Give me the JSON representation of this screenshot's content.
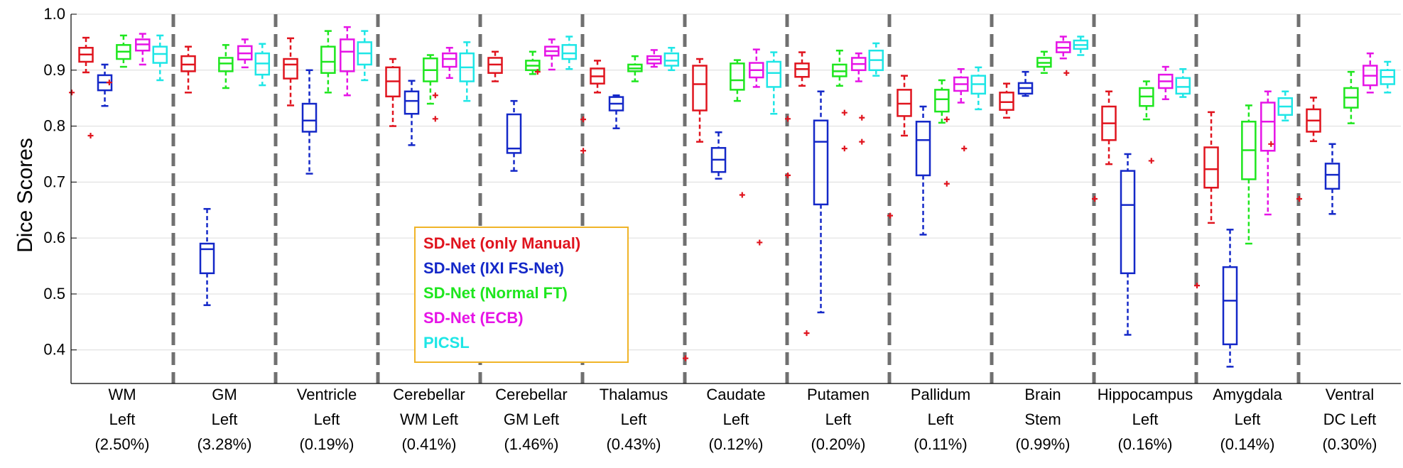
{
  "chart_data": {
    "type": "box",
    "title": "",
    "xlabel": "",
    "ylabel": "Dice Scores",
    "ylim": [
      0.34,
      1.0
    ],
    "yticks": [
      "0.4",
      "0.5",
      "0.6",
      "0.7",
      "0.8",
      "0.9",
      "1.0"
    ],
    "ytick_values": [
      0.4,
      0.5,
      0.6,
      0.7,
      0.8,
      0.9,
      1.0
    ],
    "grid": true,
    "legend_position": "center-left inside plot",
    "categories": [
      {
        "lines": [
          "WM",
          "Left",
          "(2.50%)"
        ]
      },
      {
        "lines": [
          "GM",
          "Left",
          "(3.28%)"
        ]
      },
      {
        "lines": [
          "Ventricle",
          "Left",
          "(0.19%)"
        ]
      },
      {
        "lines": [
          "Cerebellar",
          "WM Left",
          "(0.41%)"
        ]
      },
      {
        "lines": [
          "Cerebellar",
          "GM Left",
          "(1.46%)"
        ]
      },
      {
        "lines": [
          "Thalamus",
          "Left",
          "(0.43%)"
        ]
      },
      {
        "lines": [
          "Caudate",
          "Left",
          "(0.12%)"
        ]
      },
      {
        "lines": [
          "Putamen",
          "Left",
          "(0.20%)"
        ]
      },
      {
        "lines": [
          "Pallidum",
          "Left",
          "(0.11%)"
        ]
      },
      {
        "lines": [
          "Brain",
          "Stem",
          "(0.99%)"
        ]
      },
      {
        "lines": [
          "Hippocampus",
          "Left",
          "(0.16%)"
        ]
      },
      {
        "lines": [
          "Amygdala",
          "Left",
          "(0.14%)"
        ]
      },
      {
        "lines": [
          "Ventral",
          "DC Left",
          "(0.30%)"
        ]
      }
    ],
    "series": [
      {
        "name": "SD-Net (only Manual)",
        "color": "#e0141e",
        "boxes": [
          {
            "w1": 0.896,
            "q1": 0.915,
            "med": 0.928,
            "q3": 0.94,
            "w2": 0.958,
            "out": [
              0.86
            ]
          },
          {
            "w1": 0.86,
            "q1": 0.898,
            "med": 0.91,
            "q3": 0.925,
            "w2": 0.942,
            "out": []
          },
          {
            "w1": 0.837,
            "q1": 0.885,
            "med": 0.91,
            "q3": 0.92,
            "w2": 0.957,
            "out": []
          },
          {
            "w1": 0.8,
            "q1": 0.853,
            "med": 0.88,
            "q3": 0.905,
            "w2": 0.92,
            "out": []
          },
          {
            "w1": 0.88,
            "q1": 0.895,
            "med": 0.91,
            "q3": 0.922,
            "w2": 0.933,
            "out": []
          },
          {
            "w1": 0.86,
            "q1": 0.876,
            "med": 0.889,
            "q3": 0.903,
            "w2": 0.917,
            "out": [
              0.812,
              0.756
            ]
          },
          {
            "w1": 0.772,
            "q1": 0.828,
            "med": 0.875,
            "q3": 0.908,
            "w2": 0.92,
            "out": [
              0.385
            ]
          },
          {
            "w1": 0.872,
            "q1": 0.888,
            "med": 0.902,
            "q3": 0.912,
            "w2": 0.932,
            "out": [
              0.813,
              0.712
            ]
          },
          {
            "w1": 0.783,
            "q1": 0.818,
            "med": 0.84,
            "q3": 0.865,
            "w2": 0.89,
            "out": [
              0.64
            ]
          },
          {
            "w1": 0.815,
            "q1": 0.829,
            "med": 0.843,
            "q3": 0.86,
            "w2": 0.876,
            "out": []
          },
          {
            "w1": 0.732,
            "q1": 0.775,
            "med": 0.805,
            "q3": 0.835,
            "w2": 0.862,
            "out": [
              0.67
            ]
          },
          {
            "w1": 0.627,
            "q1": 0.69,
            "med": 0.723,
            "q3": 0.762,
            "w2": 0.825,
            "out": [
              0.515
            ]
          },
          {
            "w1": 0.773,
            "q1": 0.79,
            "med": 0.81,
            "q3": 0.83,
            "w2": 0.851,
            "out": [
              0.67
            ]
          }
        ]
      },
      {
        "name": "SD-Net (IXI FS-Net)",
        "color": "#1428c8",
        "boxes": [
          {
            "w1": 0.836,
            "q1": 0.864,
            "med": 0.878,
            "q3": 0.891,
            "w2": 0.91,
            "out": [
              0.783
            ]
          },
          {
            "w1": 0.48,
            "q1": 0.537,
            "med": 0.58,
            "q3": 0.59,
            "w2": 0.652,
            "out": []
          },
          {
            "w1": 0.715,
            "q1": 0.79,
            "med": 0.81,
            "q3": 0.84,
            "w2": 0.9,
            "out": []
          },
          {
            "w1": 0.766,
            "q1": 0.822,
            "med": 0.845,
            "q3": 0.862,
            "w2": 0.881,
            "out": []
          },
          {
            "w1": 0.72,
            "q1": 0.752,
            "med": 0.76,
            "q3": 0.821,
            "w2": 0.845,
            "out": []
          },
          {
            "w1": 0.796,
            "q1": 0.828,
            "med": 0.84,
            "q3": 0.852,
            "w2": 0.855,
            "out": []
          },
          {
            "w1": 0.706,
            "q1": 0.718,
            "med": 0.74,
            "q3": 0.761,
            "w2": 0.789,
            "out": []
          },
          {
            "w1": 0.467,
            "q1": 0.66,
            "med": 0.772,
            "q3": 0.81,
            "w2": 0.862,
            "out": [
              0.43
            ]
          },
          {
            "w1": 0.606,
            "q1": 0.712,
            "med": 0.775,
            "q3": 0.808,
            "w2": 0.835,
            "out": []
          },
          {
            "w1": 0.854,
            "q1": 0.858,
            "med": 0.868,
            "q3": 0.877,
            "w2": 0.897,
            "out": []
          },
          {
            "w1": 0.427,
            "q1": 0.537,
            "med": 0.659,
            "q3": 0.72,
            "w2": 0.75,
            "out": []
          },
          {
            "w1": 0.37,
            "q1": 0.41,
            "med": 0.488,
            "q3": 0.548,
            "w2": 0.615,
            "out": []
          },
          {
            "w1": 0.643,
            "q1": 0.688,
            "med": 0.713,
            "q3": 0.733,
            "w2": 0.768,
            "out": []
          }
        ]
      },
      {
        "name": "SD-Net (Normal FT)",
        "color": "#1ee61e",
        "boxes": [
          {
            "w1": 0.906,
            "q1": 0.92,
            "med": 0.933,
            "q3": 0.945,
            "w2": 0.962,
            "out": [
              0.878
            ]
          },
          {
            "w1": 0.868,
            "q1": 0.898,
            "med": 0.912,
            "q3": 0.922,
            "w2": 0.945,
            "out": []
          },
          {
            "w1": 0.86,
            "q1": 0.895,
            "med": 0.915,
            "q3": 0.942,
            "w2": 0.97,
            "out": []
          },
          {
            "w1": 0.84,
            "q1": 0.88,
            "med": 0.9,
            "q3": 0.921,
            "w2": 0.927,
            "out": []
          },
          {
            "w1": 0.893,
            "q1": 0.9,
            "med": 0.908,
            "q3": 0.917,
            "w2": 0.933,
            "out": []
          },
          {
            "w1": 0.88,
            "q1": 0.898,
            "med": 0.903,
            "q3": 0.91,
            "w2": 0.925,
            "out": []
          },
          {
            "w1": 0.845,
            "q1": 0.865,
            "med": 0.882,
            "q3": 0.912,
            "w2": 0.918,
            "out": []
          },
          {
            "w1": 0.872,
            "q1": 0.889,
            "med": 0.898,
            "q3": 0.91,
            "w2": 0.935,
            "out": []
          },
          {
            "w1": 0.806,
            "q1": 0.826,
            "med": 0.848,
            "q3": 0.865,
            "w2": 0.882,
            "out": []
          },
          {
            "w1": 0.895,
            "q1": 0.906,
            "med": 0.913,
            "q3": 0.922,
            "w2": 0.933,
            "out": []
          },
          {
            "w1": 0.812,
            "q1": 0.836,
            "med": 0.853,
            "q3": 0.868,
            "w2": 0.88,
            "out": []
          },
          {
            "w1": 0.59,
            "q1": 0.705,
            "med": 0.757,
            "q3": 0.808,
            "w2": 0.837,
            "out": []
          },
          {
            "w1": 0.805,
            "q1": 0.833,
            "med": 0.851,
            "q3": 0.868,
            "w2": 0.897,
            "out": []
          }
        ]
      },
      {
        "name": "SD-Net (ECB)",
        "color": "#e614e6",
        "boxes": [
          {
            "w1": 0.91,
            "q1": 0.935,
            "med": 0.946,
            "q3": 0.955,
            "w2": 0.965,
            "out": []
          },
          {
            "w1": 0.905,
            "q1": 0.919,
            "med": 0.93,
            "q3": 0.943,
            "w2": 0.955,
            "out": []
          },
          {
            "w1": 0.855,
            "q1": 0.898,
            "med": 0.933,
            "q3": 0.955,
            "w2": 0.977,
            "out": []
          },
          {
            "w1": 0.886,
            "q1": 0.906,
            "med": 0.92,
            "q3": 0.93,
            "w2": 0.94,
            "out": [
              0.855,
              0.813
            ]
          },
          {
            "w1": 0.901,
            "q1": 0.926,
            "med": 0.934,
            "q3": 0.942,
            "w2": 0.955,
            "out": [
              0.897
            ]
          },
          {
            "w1": 0.906,
            "q1": 0.912,
            "med": 0.919,
            "q3": 0.925,
            "w2": 0.936,
            "out": []
          },
          {
            "w1": 0.87,
            "q1": 0.887,
            "med": 0.9,
            "q3": 0.913,
            "w2": 0.937,
            "out": [
              0.677
            ]
          },
          {
            "w1": 0.88,
            "q1": 0.9,
            "med": 0.911,
            "q3": 0.922,
            "w2": 0.93,
            "out": [
              0.824,
              0.76
            ]
          },
          {
            "w1": 0.842,
            "q1": 0.863,
            "med": 0.875,
            "q3": 0.887,
            "w2": 0.902,
            "out": [
              0.812,
              0.697
            ]
          },
          {
            "w1": 0.921,
            "q1": 0.932,
            "med": 0.94,
            "q3": 0.95,
            "w2": 0.96,
            "out": []
          },
          {
            "w1": 0.848,
            "q1": 0.868,
            "med": 0.88,
            "q3": 0.892,
            "w2": 0.906,
            "out": [
              0.738
            ]
          },
          {
            "w1": 0.642,
            "q1": 0.756,
            "med": 0.808,
            "q3": 0.842,
            "w2": 0.862,
            "out": []
          },
          {
            "w1": 0.86,
            "q1": 0.873,
            "med": 0.89,
            "q3": 0.908,
            "w2": 0.93,
            "out": []
          }
        ]
      },
      {
        "name": "PICSL",
        "color": "#1ee6e6",
        "boxes": [
          {
            "w1": 0.882,
            "q1": 0.913,
            "med": 0.929,
            "q3": 0.942,
            "w2": 0.962,
            "out": []
          },
          {
            "w1": 0.873,
            "q1": 0.892,
            "med": 0.912,
            "q3": 0.93,
            "w2": 0.947,
            "out": []
          },
          {
            "w1": 0.882,
            "q1": 0.91,
            "med": 0.93,
            "q3": 0.95,
            "w2": 0.97,
            "out": []
          },
          {
            "w1": 0.845,
            "q1": 0.88,
            "med": 0.905,
            "q3": 0.93,
            "w2": 0.95,
            "out": []
          },
          {
            "w1": 0.902,
            "q1": 0.92,
            "med": 0.93,
            "q3": 0.945,
            "w2": 0.96,
            "out": []
          },
          {
            "w1": 0.9,
            "q1": 0.908,
            "med": 0.917,
            "q3": 0.93,
            "w2": 0.94,
            "out": []
          },
          {
            "w1": 0.822,
            "q1": 0.87,
            "med": 0.895,
            "q3": 0.915,
            "w2": 0.932,
            "out": [
              0.592
            ]
          },
          {
            "w1": 0.89,
            "q1": 0.9,
            "med": 0.918,
            "q3": 0.935,
            "w2": 0.948,
            "out": [
              0.815,
              0.772
            ]
          },
          {
            "w1": 0.83,
            "q1": 0.858,
            "med": 0.875,
            "q3": 0.89,
            "w2": 0.905,
            "out": [
              0.76
            ]
          },
          {
            "w1": 0.927,
            "q1": 0.938,
            "med": 0.945,
            "q3": 0.953,
            "w2": 0.96,
            "out": [
              0.895
            ]
          },
          {
            "w1": 0.852,
            "q1": 0.858,
            "med": 0.87,
            "q3": 0.886,
            "w2": 0.902,
            "out": []
          },
          {
            "w1": 0.81,
            "q1": 0.82,
            "med": 0.835,
            "q3": 0.85,
            "w2": 0.862,
            "out": [
              0.768
            ]
          },
          {
            "w1": 0.86,
            "q1": 0.875,
            "med": 0.888,
            "q3": 0.9,
            "w2": 0.915,
            "out": []
          }
        ]
      }
    ],
    "legend": [
      {
        "label": "SD-Net (only Manual)",
        "color": "#e0141e"
      },
      {
        "label": "SD-Net (IXI FS-Net)",
        "color": "#1428c8"
      },
      {
        "label": "SD-Net (Normal FT)",
        "color": "#1ee61e"
      },
      {
        "label": "SD-Net (ECB)",
        "color": "#e614e6"
      },
      {
        "label": "PICSL",
        "color": "#1ee6e6"
      }
    ],
    "separator_color": "#707070",
    "legend_border_color": "#f0b428",
    "outlier_color": "#e0141e"
  }
}
